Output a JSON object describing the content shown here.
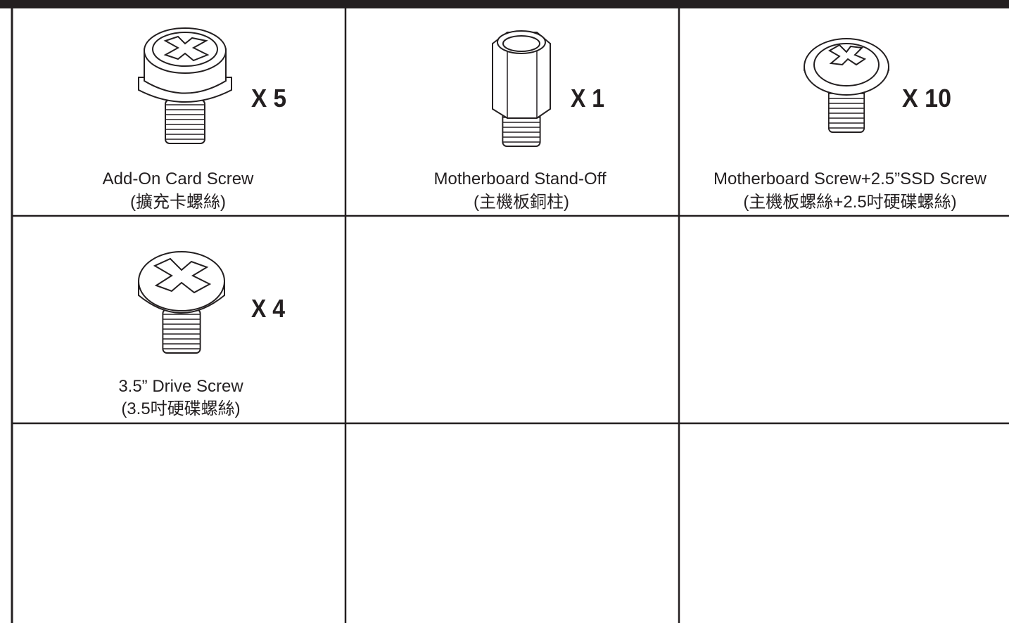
{
  "items": [
    {
      "quantity": "X 5",
      "name": "Add-On Card Screw",
      "name_zh": "(擴充卡螺絲)"
    },
    {
      "quantity": "X 1",
      "name": "Motherboard Stand-Off",
      "name_zh": "(主機板銅柱)"
    },
    {
      "quantity": "X 10",
      "name": "Motherboard Screw+2.5”SSD Screw",
      "name_zh": "(主機板螺絲+2.5吋硬碟螺絲)"
    },
    {
      "quantity": "X 4",
      "name": "3.5” Drive Screw",
      "name_zh": "(3.5吋硬碟螺絲)"
    }
  ]
}
